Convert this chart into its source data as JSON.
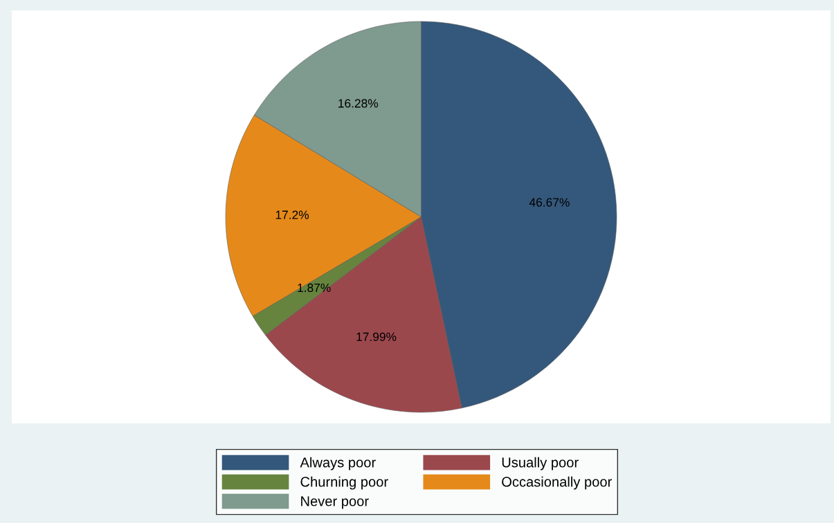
{
  "chart_data": {
    "type": "pie",
    "categories": [
      "Always poor",
      "Usually poor",
      "Churning poor",
      "Occasionally poor",
      "Never poor"
    ],
    "values": [
      46.67,
      17.99,
      1.87,
      17.2,
      16.28
    ],
    "colors": [
      "#34587b",
      "#9b484d",
      "#67843f",
      "#e58a1a",
      "#7f9a8f"
    ],
    "value_labels": [
      "46.67%",
      "17.99%",
      "1.87%",
      "17.2%",
      "16.28%"
    ],
    "legend": "bottom"
  }
}
